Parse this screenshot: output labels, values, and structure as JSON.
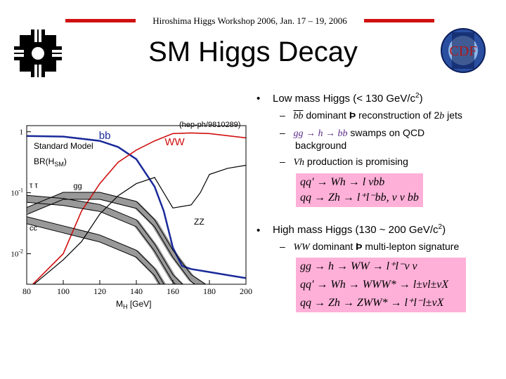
{
  "header": {
    "workshop": "Hiroshima Higgs Workshop 2006, Jan. 17 – 19, 2006"
  },
  "title": "SM Higgs Decay",
  "logos": {
    "cdf_label": "CDF"
  },
  "chart_data": {
    "type": "line",
    "ylabel_lines": [
      "Standard Model",
      "BR(H",
      "SM",
      ")"
    ],
    "xlabel_main": "M",
    "xlabel_sub": "H",
    "xlabel_unit": " [GeV]",
    "source_note": "(hep-ph/9810289)",
    "xlim": [
      80,
      200
    ],
    "ylim_log10": [
      -2.5,
      0.1
    ],
    "x_ticks": [
      "80",
      "100",
      "120",
      "140",
      "160",
      "180",
      "200"
    ],
    "y_ticks": [
      {
        "mant": "1",
        "exp": "",
        "v": 0
      },
      {
        "mant": "10",
        "exp": "-1",
        "v": -1
      },
      {
        "mant": "10",
        "exp": "-2",
        "v": -2
      }
    ],
    "series": [
      {
        "name": "bb",
        "color": "#1a2a9a",
        "x": [
          80,
          100,
          120,
          130,
          140,
          150,
          155,
          160,
          165,
          170,
          180,
          190,
          200
        ],
        "log10": [
          -0.07,
          -0.08,
          -0.15,
          -0.25,
          -0.45,
          -0.9,
          -1.3,
          -1.9,
          -2.2,
          -2.25,
          -2.3,
          -2.35,
          -2.4
        ]
      },
      {
        "name": "WW",
        "color": "#d01010",
        "x": [
          80,
          100,
          110,
          120,
          130,
          140,
          150,
          160,
          170,
          180,
          200
        ],
        "log10": [
          -2.6,
          -2.0,
          -1.3,
          -0.85,
          -0.5,
          -0.3,
          -0.15,
          -0.03,
          -0.02,
          -0.03,
          -0.1
        ]
      },
      {
        "name": "ZZ",
        "color": "#000000",
        "x": [
          80,
          100,
          110,
          120,
          130,
          140,
          150,
          160,
          170,
          175,
          180,
          190,
          200
        ],
        "log10": [
          -2.6,
          -2.1,
          -1.8,
          -1.35,
          -1.05,
          -0.85,
          -0.75,
          -1.25,
          -1.2,
          -1.0,
          -0.7,
          -0.6,
          -0.55
        ]
      },
      {
        "name": "gg",
        "color": "#000000",
        "x": [
          80,
          100,
          120,
          140,
          150,
          160,
          170,
          180
        ],
        "log10": [
          -1.3,
          -1.05,
          -1.05,
          -1.2,
          -1.5,
          -2.0,
          -2.4,
          -2.6
        ]
      },
      {
        "name": "ττ",
        "color": "#000000",
        "x": [
          80,
          100,
          120,
          140,
          150,
          160,
          170
        ],
        "log10": [
          -1.1,
          -1.15,
          -1.25,
          -1.5,
          -1.9,
          -2.4,
          -2.7
        ]
      },
      {
        "name": "cc",
        "color": "#000000",
        "x": [
          80,
          100,
          120,
          140,
          150,
          160,
          170
        ],
        "log10": [
          -1.45,
          -1.6,
          -1.75,
          -2.0,
          -2.3,
          -2.8,
          -3.1
        ]
      },
      {
        "name": "γγ",
        "color": "#000000",
        "x": [
          80,
          100,
          120,
          130,
          140,
          150
        ],
        "log10": [
          -2.7,
          -2.6,
          -2.55,
          -2.6,
          -2.8,
          -3.2
        ]
      }
    ],
    "curve_labels": [
      {
        "text": "bb",
        "color": "#1a2a9a",
        "size": 15,
        "at": [
          118,
          -0.12
        ]
      },
      {
        "text": "WW",
        "color": "#d01010",
        "size": 15,
        "at": [
          154,
          -0.22
        ]
      },
      {
        "text": "ZZ",
        "color": "#000000",
        "size": 12,
        "at": [
          170,
          -1.52
        ]
      },
      {
        "text": "gg",
        "color": "#000000",
        "size": 11,
        "at": [
          104,
          -0.93
        ]
      },
      {
        "text": "τ τ",
        "color": "#000000",
        "size": 11,
        "at": [
          80,
          -0.92
        ]
      },
      {
        "text": "cc",
        "color": "#000000",
        "size": 11,
        "at": [
          80,
          -1.62
        ]
      }
    ]
  },
  "bullets": {
    "low": {
      "marker": "•",
      "text": "Low mass Higgs (< 130 GeV/c",
      "sup": "2",
      "tail": ")",
      "subs": [
        {
          "dash": "–",
          "pre": "bb",
          "mid": " dominant ",
          "arrow": "Þ",
          "post": " reconstruction of 2",
          "b": "b",
          "end": " jets"
        },
        {
          "dash": "–",
          "eq": "gg → h → bb",
          "end": " swamps on QCD",
          "line2": "background"
        },
        {
          "dash": "–",
          "v": "Vh",
          "end": " production is promising"
        }
      ],
      "box": [
        "qq' → Wh → l νbb",
        "qq → Zh → l⁺l⁻bb, ν ν bb"
      ]
    },
    "high": {
      "marker": "•",
      "text": "High mass Higgs (130 ~ 200 GeV/c",
      "sup": "2",
      "tail": ")",
      "subs": [
        {
          "dash": "–",
          "ww": "WW",
          "mid": " dominant ",
          "arrow": "Þ",
          "end": " multi-lepton signature"
        }
      ],
      "box": [
        "gg → h → WW → l⁺l⁻ν ν",
        "qq' → Wh → WWW* → l±νl±νX",
        "qq → Zh → ZWW* → l⁺l⁻l±νX"
      ]
    }
  }
}
